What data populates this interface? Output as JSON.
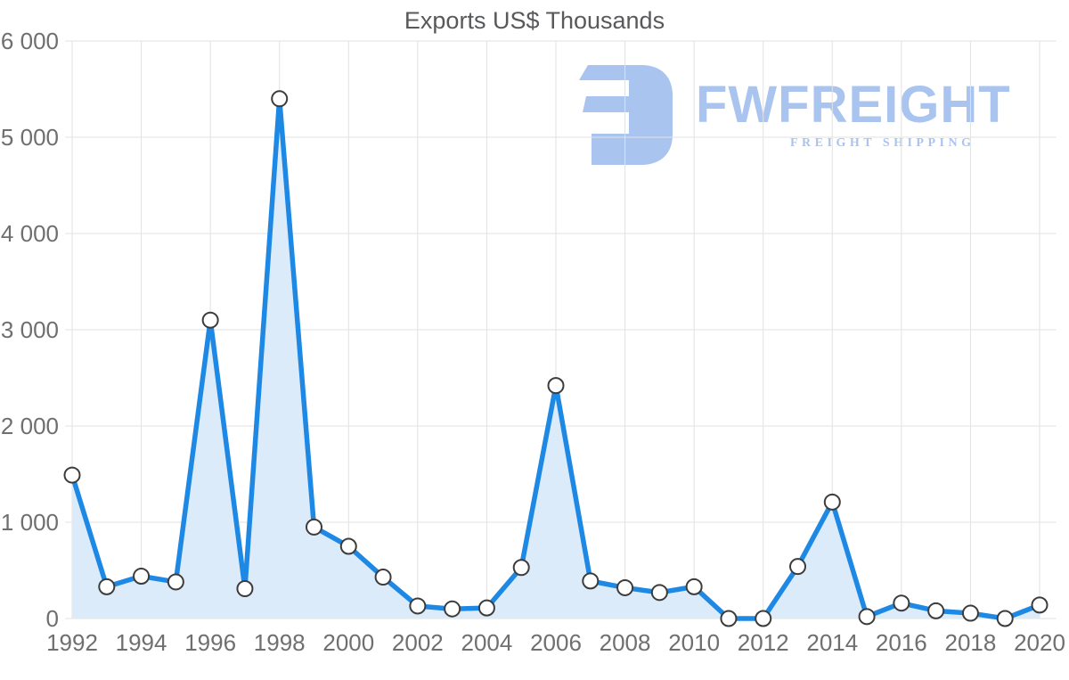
{
  "page": {
    "title": "Exports US$ Thousands"
  },
  "watermark": {
    "brand": "FWFREIGHT",
    "tagline": "FREIGHT SHIPPING",
    "color": "#a9c4ef"
  },
  "chart_data": {
    "type": "area",
    "title": "Exports US$ Thousands",
    "x": [
      1992,
      1993,
      1994,
      1995,
      1996,
      1997,
      1998,
      1999,
      2000,
      2001,
      2002,
      2003,
      2004,
      2005,
      2006,
      2007,
      2008,
      2009,
      2010,
      2011,
      2012,
      2013,
      2014,
      2015,
      2016,
      2017,
      2018,
      2019,
      2020
    ],
    "series": [
      {
        "name": "Exports US$ Thousands",
        "values": [
          1490,
          330,
          440,
          380,
          3100,
          310,
          5400,
          950,
          750,
          430,
          130,
          100,
          110,
          530,
          2420,
          390,
          320,
          270,
          330,
          0,
          0,
          540,
          1210,
          20,
          160,
          80,
          55,
          0,
          140
        ]
      }
    ],
    "xlabel": "",
    "ylabel": "",
    "ylim": [
      0,
      6000
    ],
    "ytick_step": 1000,
    "ytick_labels": [
      "0",
      "1 000",
      "2 000",
      "3 000",
      "4 000",
      "5 000",
      "6 000"
    ],
    "xtick_step": 2,
    "xtick_labels": [
      "1992",
      "1994",
      "1996",
      "1998",
      "2000",
      "2002",
      "2004",
      "2006",
      "2008",
      "2010",
      "2012",
      "2014",
      "2016",
      "2018",
      "2020"
    ],
    "grid": true,
    "legend": "none",
    "marker": "circle",
    "colors": {
      "line": "#1e88e5",
      "fill": "#dcebfa",
      "marker_fill": "#ffffff",
      "marker_stroke": "#3c3c3c",
      "gridline": "#e2e2e2",
      "axis_label": "#6f6f6f",
      "title": "#58595b"
    }
  }
}
